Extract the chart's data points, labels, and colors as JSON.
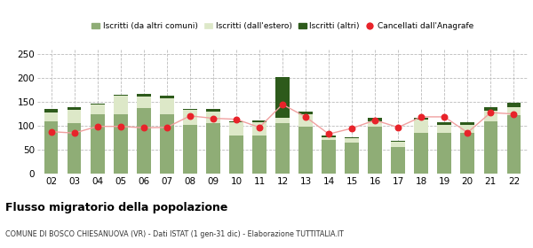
{
  "categories": [
    "02",
    "03",
    "04",
    "05",
    "06",
    "07",
    "08",
    "09",
    "10",
    "11",
    "12",
    "13",
    "14",
    "15",
    "16",
    "17",
    "18",
    "19",
    "20",
    "21",
    "22"
  ],
  "iscritti_comuni": [
    110,
    105,
    124,
    125,
    137,
    125,
    103,
    105,
    79,
    80,
    105,
    99,
    71,
    65,
    99,
    55,
    85,
    85,
    85,
    110,
    122
  ],
  "iscritti_estero": [
    18,
    28,
    20,
    38,
    25,
    33,
    30,
    25,
    28,
    28,
    12,
    26,
    6,
    10,
    10,
    12,
    28,
    18,
    18,
    22,
    18
  ],
  "iscritti_altri": [
    8,
    7,
    3,
    3,
    5,
    5,
    3,
    5,
    3,
    3,
    85,
    5,
    2,
    2,
    8,
    2,
    4,
    5,
    4,
    8,
    8
  ],
  "cancellati": [
    88,
    85,
    99,
    99,
    96,
    97,
    121,
    116,
    114,
    97,
    145,
    119,
    83,
    95,
    112,
    97,
    119,
    119,
    86,
    128,
    125
  ],
  "ylim": [
    0,
    260
  ],
  "yticks": [
    0,
    50,
    100,
    150,
    200,
    250
  ],
  "color_comuni": "#8fad76",
  "color_estero": "#dde8c8",
  "color_altri": "#2d5a1b",
  "color_cancellati": "#e8232a",
  "color_line": "#f0a0a0",
  "title": "Flusso migratorio della popolazione",
  "subtitle": "COMUNE DI BOSCO CHIESANUOVA (VR) - Dati ISTAT (1 gen-31 dic) - Elaborazione TUTTITALIA.IT",
  "legend_labels": [
    "Iscritti (da altri comuni)",
    "Iscritti (dall'estero)",
    "Iscritti (altri)",
    "Cancellati dall'Anagrafe"
  ],
  "background_color": "#ffffff",
  "grid_color": "#bbbbbb"
}
